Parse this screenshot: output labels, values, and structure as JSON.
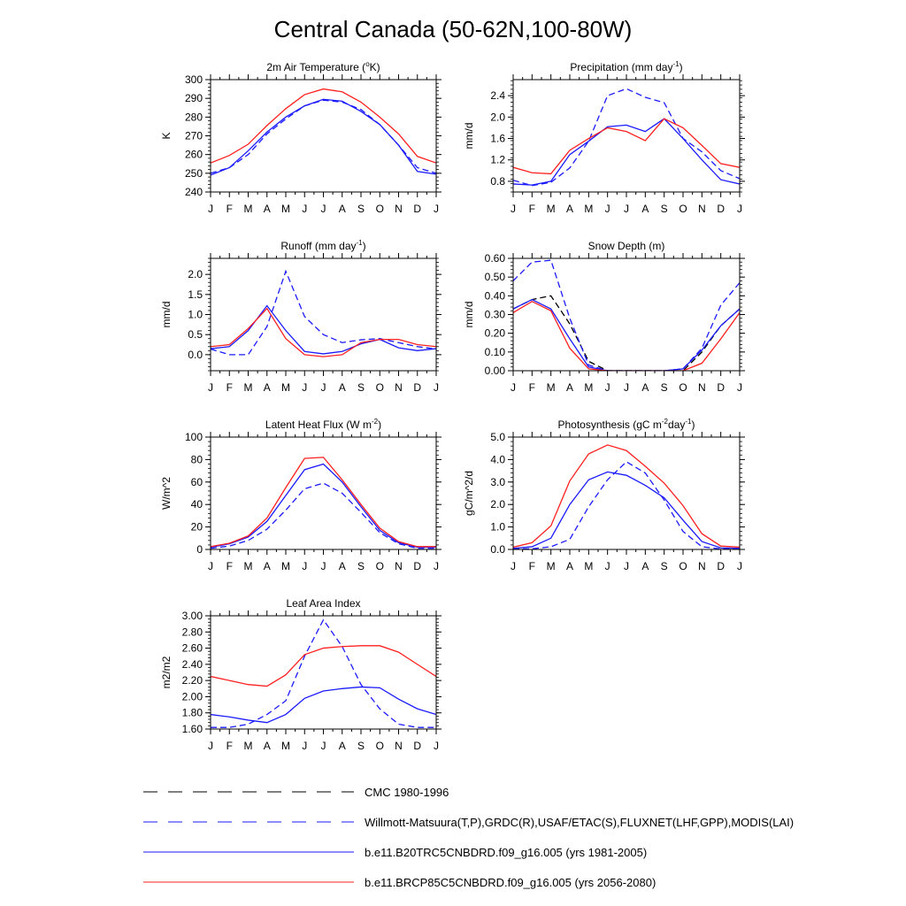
{
  "page": {
    "title": "Central Canada (50-62N,100-80W)"
  },
  "legend": [
    {
      "label": "CMC 1980-1996",
      "color": "#000000",
      "dash": "dashed"
    },
    {
      "label": "Willmott-Matsuura(T,P),GRDC(R),USAF/ETAC(S),FLUXNET(LHF,GPP),MODIS(LAI)",
      "color": "#1a1aff",
      "dash": "dashed"
    },
    {
      "label": "b.e11.B20TRC5CNBDRD.f09_g16.005 (yrs 1981-2005)",
      "color": "#1a1aff",
      "dash": "solid"
    },
    {
      "label": "b.e11.BRCP85C5CNBDRD.f09_g16.005 (yrs 2056-2080)",
      "color": "#ff2020",
      "dash": "solid"
    }
  ],
  "chart_data": [
    {
      "type": "line",
      "title": "2m Air Temperature (°K)",
      "title_parts": [
        "2m Air Temperature (",
        "o",
        "K)"
      ],
      "ylabel": "K",
      "x": [
        "J",
        "F",
        "M",
        "A",
        "M",
        "J",
        "J",
        "A",
        "S",
        "O",
        "N",
        "D",
        "J"
      ],
      "ylim": [
        240,
        300
      ],
      "yticks": [
        240,
        250,
        260,
        270,
        280,
        290,
        300
      ],
      "ytick_labels": [
        "240",
        "250",
        "260",
        "270",
        "280",
        "290",
        "300"
      ],
      "series": [
        {
          "legend_index": 1,
          "color": "#1a1aff",
          "dash": "dashed",
          "values": [
            250,
            253,
            260,
            271,
            279,
            286,
            289,
            288,
            284,
            276,
            265,
            253,
            250
          ]
        },
        {
          "legend_index": 2,
          "color": "#1a1aff",
          "dash": "solid",
          "values": [
            249,
            253,
            262,
            272,
            280,
            286,
            289.5,
            288.5,
            283,
            276,
            265,
            251,
            249.5
          ]
        },
        {
          "legend_index": 3,
          "color": "#ff2020",
          "dash": "solid",
          "values": [
            255.5,
            259.5,
            265.5,
            275.5,
            284.5,
            292,
            295,
            293.5,
            288,
            280,
            271,
            259,
            255.5
          ]
        }
      ]
    },
    {
      "type": "line",
      "title": "Precipitation (mm day-1)",
      "title_parts": [
        "Precipitation (mm day",
        "-1",
        ")"
      ],
      "ylabel": "mm/d",
      "x": [
        "J",
        "F",
        "M",
        "A",
        "M",
        "J",
        "J",
        "A",
        "S",
        "O",
        "N",
        "D",
        "J"
      ],
      "ylim": [
        0.6,
        2.7
      ],
      "yticks": [
        0.8,
        1.2,
        1.6,
        2.0,
        2.4
      ],
      "ytick_labels": [
        "0.8",
        "1.2",
        "1.6",
        "2.0",
        "2.4"
      ],
      "series": [
        {
          "legend_index": 1,
          "color": "#1a1aff",
          "dash": "dashed",
          "values": [
            0.82,
            0.72,
            0.78,
            1.05,
            1.55,
            2.4,
            2.53,
            2.37,
            2.27,
            1.6,
            1.35,
            1.0,
            0.85
          ]
        },
        {
          "legend_index": 2,
          "color": "#1a1aff",
          "dash": "solid",
          "values": [
            0.75,
            0.73,
            0.8,
            1.3,
            1.55,
            1.82,
            1.85,
            1.73,
            1.97,
            1.6,
            1.2,
            0.83,
            0.75
          ]
        },
        {
          "legend_index": 3,
          "color": "#ff2020",
          "dash": "solid",
          "values": [
            1.06,
            0.96,
            0.94,
            1.38,
            1.6,
            1.8,
            1.73,
            1.56,
            1.97,
            1.8,
            1.47,
            1.13,
            1.06
          ]
        }
      ]
    },
    {
      "type": "line",
      "title": "Runoff (mm day-1)",
      "title_parts": [
        "Runoff (mm day",
        "-1",
        ")"
      ],
      "ylabel": "mm/d",
      "x": [
        "J",
        "F",
        "M",
        "A",
        "M",
        "J",
        "J",
        "A",
        "S",
        "O",
        "N",
        "D",
        "J"
      ],
      "ylim": [
        -0.4,
        2.4
      ],
      "yticks": [
        0.0,
        0.5,
        1.0,
        1.5,
        2.0
      ],
      "ytick_labels": [
        "0.0",
        "0.5",
        "1.0",
        "1.5",
        "2.0"
      ],
      "series": [
        {
          "legend_index": 1,
          "color": "#1a1aff",
          "dash": "dashed",
          "values": [
            0.14,
            0.0,
            0.0,
            0.7,
            2.08,
            0.95,
            0.5,
            0.3,
            0.37,
            0.4,
            0.3,
            0.2,
            0.14
          ]
        },
        {
          "legend_index": 2,
          "color": "#1a1aff",
          "dash": "solid",
          "values": [
            0.15,
            0.2,
            0.6,
            1.22,
            0.6,
            0.08,
            0.02,
            0.08,
            0.27,
            0.38,
            0.17,
            0.1,
            0.15
          ]
        },
        {
          "legend_index": 3,
          "color": "#ff2020",
          "dash": "solid",
          "values": [
            0.2,
            0.25,
            0.65,
            1.15,
            0.4,
            0.0,
            -0.05,
            0.0,
            0.3,
            0.38,
            0.38,
            0.25,
            0.2
          ]
        }
      ]
    },
    {
      "type": "line",
      "title": "Snow Depth (m)",
      "title_parts": [
        "Snow Depth (m)"
      ],
      "ylabel": "mm/d",
      "x": [
        "J",
        "F",
        "M",
        "A",
        "M",
        "J",
        "J",
        "A",
        "S",
        "O",
        "N",
        "D",
        "J"
      ],
      "ylim": [
        0.0,
        0.6
      ],
      "yticks": [
        0.0,
        0.1,
        0.2,
        0.3,
        0.4,
        0.5,
        0.6
      ],
      "ytick_labels": [
        "0.00",
        "0.10",
        "0.20",
        "0.30",
        "0.40",
        "0.50",
        "0.60"
      ],
      "series": [
        {
          "legend_index": 0,
          "color": "#000000",
          "dash": "dashed",
          "values": [
            0.33,
            0.38,
            0.4,
            0.25,
            0.05,
            0.0,
            0.0,
            0.0,
            0.0,
            0.0,
            0.1,
            0.24,
            0.33
          ]
        },
        {
          "legend_index": 1,
          "color": "#1a1aff",
          "dash": "dashed",
          "values": [
            0.48,
            0.58,
            0.59,
            0.28,
            0.03,
            0.0,
            0.0,
            0.0,
            0.0,
            0.01,
            0.12,
            0.35,
            0.47
          ]
        },
        {
          "legend_index": 2,
          "color": "#1a1aff",
          "dash": "solid",
          "values": [
            0.33,
            0.38,
            0.33,
            0.17,
            0.02,
            0.0,
            0.0,
            0.0,
            0.0,
            0.01,
            0.11,
            0.24,
            0.33
          ]
        },
        {
          "legend_index": 3,
          "color": "#ff2020",
          "dash": "solid",
          "values": [
            0.31,
            0.37,
            0.32,
            0.12,
            0.01,
            0.0,
            0.0,
            0.0,
            0.0,
            0.0,
            0.04,
            0.17,
            0.31
          ]
        }
      ]
    },
    {
      "type": "line",
      "title": "Latent Heat Flux (W m-2)",
      "title_parts": [
        "Latent Heat Flux (W m",
        "-2",
        ")"
      ],
      "ylabel": "W/m^2",
      "x": [
        "J",
        "F",
        "M",
        "A",
        "M",
        "J",
        "J",
        "A",
        "S",
        "O",
        "N",
        "D",
        "J"
      ],
      "ylim": [
        0,
        100
      ],
      "yticks": [
        0,
        20,
        40,
        60,
        80,
        100
      ],
      "ytick_labels": [
        "0",
        "20",
        "40",
        "60",
        "80",
        "100"
      ],
      "series": [
        {
          "legend_index": 1,
          "color": "#1a1aff",
          "dash": "dashed",
          "values": [
            1,
            3,
            8,
            18,
            35,
            54,
            59,
            50,
            33,
            15,
            5,
            1,
            1
          ]
        },
        {
          "legend_index": 2,
          "color": "#1a1aff",
          "dash": "solid",
          "values": [
            2,
            5,
            11,
            25,
            48,
            71,
            76,
            60,
            38,
            17,
            6,
            2,
            2
          ]
        },
        {
          "legend_index": 3,
          "color": "#ff2020",
          "dash": "solid",
          "values": [
            2.5,
            5.5,
            12,
            28,
            55,
            81,
            82,
            62,
            40,
            19,
            7,
            2.5,
            2.5
          ]
        }
      ]
    },
    {
      "type": "line",
      "title": "Photosynthesis (gC m-2day-1)",
      "title_parts": [
        "Photosynthesis (gC m",
        "-2",
        "day",
        "-1",
        ")"
      ],
      "ylabel": "gC/m^2/d",
      "x": [
        "J",
        "F",
        "M",
        "A",
        "M",
        "J",
        "J",
        "A",
        "S",
        "O",
        "N",
        "D",
        "J"
      ],
      "ylim": [
        0,
        5
      ],
      "yticks": [
        0,
        1,
        2,
        3,
        4,
        5
      ],
      "ytick_labels": [
        "0.0",
        "1.0",
        "2.0",
        "3.0",
        "4.0",
        "5.0"
      ],
      "series": [
        {
          "legend_index": 1,
          "color": "#1a1aff",
          "dash": "dashed",
          "values": [
            0.02,
            0.03,
            0.12,
            0.45,
            1.9,
            3.1,
            3.9,
            3.4,
            2.2,
            0.8,
            0.12,
            0.02,
            0.02
          ]
        },
        {
          "legend_index": 2,
          "color": "#1a1aff",
          "dash": "solid",
          "values": [
            0.05,
            0.12,
            0.5,
            2.0,
            3.1,
            3.45,
            3.3,
            2.85,
            2.3,
            1.3,
            0.35,
            0.07,
            0.05
          ]
        },
        {
          "legend_index": 3,
          "color": "#ff2020",
          "dash": "solid",
          "values": [
            0.1,
            0.3,
            1.05,
            3.05,
            4.25,
            4.65,
            4.4,
            3.7,
            2.95,
            1.95,
            0.7,
            0.15,
            0.1
          ]
        }
      ]
    },
    {
      "type": "line",
      "title": "Leaf Area Index",
      "title_parts": [
        "Leaf Area Index"
      ],
      "ylabel": "m2/m2",
      "x": [
        "J",
        "F",
        "M",
        "A",
        "M",
        "J",
        "J",
        "A",
        "S",
        "O",
        "N",
        "D",
        "J"
      ],
      "ylim": [
        1.6,
        3.0
      ],
      "yticks": [
        1.6,
        1.8,
        2.0,
        2.2,
        2.4,
        2.6,
        2.8,
        3.0
      ],
      "ytick_labels": [
        "1.60",
        "1.80",
        "2.00",
        "2.20",
        "2.40",
        "2.60",
        "2.80",
        "3.00"
      ],
      "series": [
        {
          "legend_index": 1,
          "color": "#1a1aff",
          "dash": "dashed",
          "values": [
            1.62,
            1.62,
            1.66,
            1.78,
            1.95,
            2.5,
            2.95,
            2.62,
            2.15,
            1.85,
            1.66,
            1.62,
            1.62
          ]
        },
        {
          "legend_index": 2,
          "color": "#1a1aff",
          "dash": "solid",
          "values": [
            1.78,
            1.75,
            1.71,
            1.68,
            1.78,
            1.98,
            2.07,
            2.1,
            2.12,
            2.11,
            1.97,
            1.85,
            1.78
          ]
        },
        {
          "legend_index": 3,
          "color": "#ff2020",
          "dash": "solid",
          "values": [
            2.25,
            2.2,
            2.15,
            2.13,
            2.27,
            2.52,
            2.6,
            2.62,
            2.63,
            2.63,
            2.55,
            2.4,
            2.25
          ]
        }
      ]
    }
  ]
}
